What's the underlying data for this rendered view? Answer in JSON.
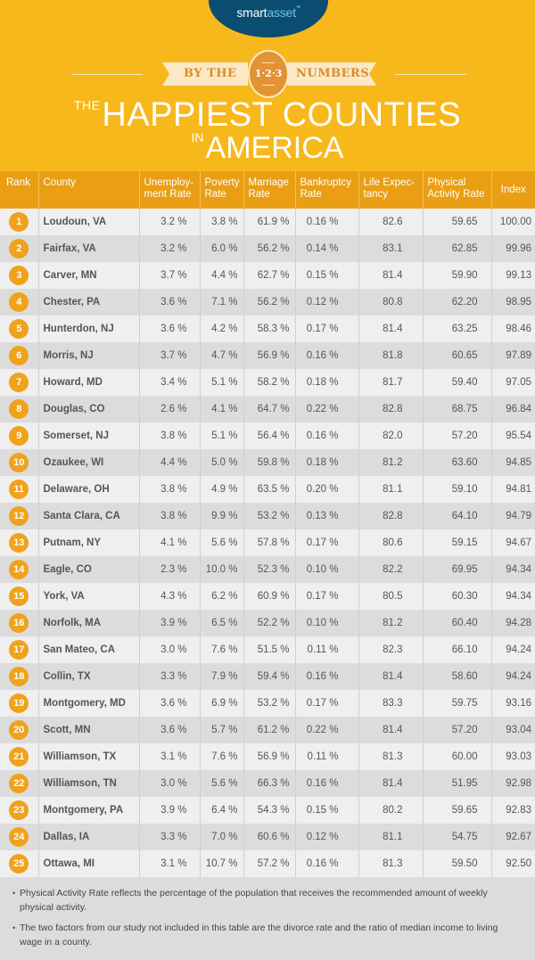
{
  "brand": {
    "logo_part1": "smart",
    "logo_part2": "asset",
    "logo_tm": "™"
  },
  "banner": {
    "left_text": "BY THE",
    "medal_text": "1·2·3",
    "right_text": "NUMBERS"
  },
  "title": {
    "prefix1": "THE",
    "main1": "HAPPIEST COUNTIES",
    "prefix2": "IN",
    "main2": "AMERICA"
  },
  "colors": {
    "background": "#f7b81c",
    "header": "#e99e13",
    "badge": "#f0a21b",
    "logo_oval": "#0a4d70",
    "logo_accent": "#6fc2ea",
    "row_light": "#efefef",
    "row_dark": "#dcdcdc"
  },
  "table": {
    "headers": [
      "Rank",
      "County",
      "Unemploy-ment Rate",
      "Poverty Rate",
      "Marriage Rate",
      "Bankruptcy Rate",
      "Life Expec-tancy",
      "Physical Activity Rate",
      "Index"
    ],
    "rows": [
      [
        "1",
        "Loudoun, VA",
        "3.2 %",
        "3.8 %",
        "61.9 %",
        "0.16 %",
        "82.6",
        "59.65",
        "100.00"
      ],
      [
        "2",
        "Fairfax, VA",
        "3.2 %",
        "6.0 %",
        "56.2 %",
        "0.14 %",
        "83.1",
        "62.85",
        "99.96"
      ],
      [
        "3",
        "Carver, MN",
        "3.7 %",
        "4.4 %",
        "62.7 %",
        "0.15 %",
        "81.4",
        "59.90",
        "99.13"
      ],
      [
        "4",
        "Chester, PA",
        "3.6 %",
        "7.1 %",
        "56.2 %",
        "0.12 %",
        "80.8",
        "62.20",
        "98.95"
      ],
      [
        "5",
        "Hunterdon, NJ",
        "3.6 %",
        "4.2 %",
        "58.3 %",
        "0.17 %",
        "81.4",
        "63.25",
        "98.46"
      ],
      [
        "6",
        "Morris, NJ",
        "3.7 %",
        "4.7 %",
        "56.9 %",
        "0.16 %",
        "81.8",
        "60.65",
        "97.89"
      ],
      [
        "7",
        "Howard, MD",
        "3.4 %",
        "5.1 %",
        "58.2 %",
        "0.18 %",
        "81.7",
        "59.40",
        "97.05"
      ],
      [
        "8",
        "Douglas, CO",
        "2.6 %",
        "4.1 %",
        "64.7 %",
        "0.22 %",
        "82.8",
        "68.75",
        "96.84"
      ],
      [
        "9",
        "Somerset, NJ",
        "3.8 %",
        "5.1 %",
        "56.4 %",
        "0.16 %",
        "82.0",
        "57.20",
        "95.54"
      ],
      [
        "10",
        "Ozaukee, WI",
        "4.4 %",
        "5.0 %",
        "59.8 %",
        "0.18 %",
        "81.2",
        "63.60",
        "94.85"
      ],
      [
        "11",
        "Delaware, OH",
        "3.8 %",
        "4.9 %",
        "63.5 %",
        "0.20 %",
        "81.1",
        "59.10",
        "94.81"
      ],
      [
        "12",
        "Santa Clara, CA",
        "3.8 %",
        "9.9 %",
        "53.2 %",
        "0.13 %",
        "82.8",
        "64.10",
        "94.79"
      ],
      [
        "13",
        "Putnam, NY",
        "4.1 %",
        "5.6 %",
        "57.8 %",
        "0.17 %",
        "80.6",
        "59.15",
        "94.67"
      ],
      [
        "14",
        "Eagle, CO",
        "2.3 %",
        "10.0 %",
        "52.3 %",
        "0.10 %",
        "82.2",
        "69.95",
        "94.34"
      ],
      [
        "15",
        "York, VA",
        "4.3 %",
        "6.2 %",
        "60.9 %",
        "0.17 %",
        "80.5",
        "60.30",
        "94.34"
      ],
      [
        "16",
        "Norfolk, MA",
        "3.9 %",
        "6.5 %",
        "52.2 %",
        "0.10 %",
        "81.2",
        "60.40",
        "94.28"
      ],
      [
        "17",
        "San Mateo, CA",
        "3.0 %",
        "7.6 %",
        "51.5 %",
        "0.11 %",
        "82.3",
        "66.10",
        "94.24"
      ],
      [
        "18",
        "Collin, TX",
        "3.3 %",
        "7.9 %",
        "59.4 %",
        "0.16 %",
        "81.4",
        "58.60",
        "94.24"
      ],
      [
        "19",
        "Montgomery, MD",
        "3.6 %",
        "6.9 %",
        "53.2 %",
        "0.17 %",
        "83.3",
        "59.75",
        "93.16"
      ],
      [
        "20",
        "Scott, MN",
        "3.6 %",
        "5.7 %",
        "61.2 %",
        "0.22 %",
        "81.4",
        "57.20",
        "93.04"
      ],
      [
        "21",
        "Williamson, TX",
        "3.1 %",
        "7.6 %",
        "56.9 %",
        "0.11 %",
        "81.3",
        "60.00",
        "93.03"
      ],
      [
        "22",
        "Williamson, TN",
        "3.0 %",
        "5.6 %",
        "66.3 %",
        "0.16 %",
        "81.4",
        "51.95",
        "92.98"
      ],
      [
        "23",
        "Montgomery, PA",
        "3.9 %",
        "6.4 %",
        "54.3 %",
        "0.15 %",
        "80.2",
        "59.65",
        "92.83"
      ],
      [
        "24",
        "Dallas, IA",
        "3.3 %",
        "7.0 %",
        "60.6 %",
        "0.12 %",
        "81.1",
        "54.75",
        "92.67"
      ],
      [
        "25",
        "Ottawa, MI",
        "3.1 %",
        "10.7 %",
        "57.2 %",
        "0.16 %",
        "81.3",
        "59.50",
        "92.50"
      ]
    ]
  },
  "footnotes": [
    "Physical Activity Rate reflects the percentage of the population that receives the recommended amount of weekly physical activity.",
    "The two factors from our study not included in this table are the divorce rate and the ratio of median income to living wage in a county."
  ],
  "chart_data": {
    "type": "table",
    "title": "The Happiest Counties in America",
    "subtitle": "By the 1·2·3 Numbers",
    "columns": [
      "Rank",
      "County",
      "Unemployment Rate",
      "Poverty Rate",
      "Marriage Rate",
      "Bankruptcy Rate",
      "Life Expectancy",
      "Physical Activity Rate",
      "Index"
    ],
    "categories": [
      "Loudoun, VA",
      "Fairfax, VA",
      "Carver, MN",
      "Chester, PA",
      "Hunterdon, NJ",
      "Morris, NJ",
      "Howard, MD",
      "Douglas, CO",
      "Somerset, NJ",
      "Ozaukee, WI",
      "Delaware, OH",
      "Santa Clara, CA",
      "Putnam, NY",
      "Eagle, CO",
      "York, VA",
      "Norfolk, MA",
      "San Mateo, CA",
      "Collin, TX",
      "Montgomery, MD",
      "Scott, MN",
      "Williamson, TX",
      "Williamson, TN",
      "Montgomery, PA",
      "Dallas, IA",
      "Ottawa, MI"
    ],
    "series": [
      {
        "name": "Unemployment Rate (%)",
        "values": [
          3.2,
          3.2,
          3.7,
          3.6,
          3.6,
          3.7,
          3.4,
          2.6,
          3.8,
          4.4,
          3.8,
          3.8,
          4.1,
          2.3,
          4.3,
          3.9,
          3.0,
          3.3,
          3.6,
          3.6,
          3.1,
          3.0,
          3.9,
          3.3,
          3.1
        ]
      },
      {
        "name": "Poverty Rate (%)",
        "values": [
          3.8,
          6.0,
          4.4,
          7.1,
          4.2,
          4.7,
          5.1,
          4.1,
          5.1,
          5.0,
          4.9,
          9.9,
          5.6,
          10.0,
          6.2,
          6.5,
          7.6,
          7.9,
          6.9,
          5.7,
          7.6,
          5.6,
          6.4,
          7.0,
          10.7
        ]
      },
      {
        "name": "Marriage Rate (%)",
        "values": [
          61.9,
          56.2,
          62.7,
          56.2,
          58.3,
          56.9,
          58.2,
          64.7,
          56.4,
          59.8,
          63.5,
          53.2,
          57.8,
          52.3,
          60.9,
          52.2,
          51.5,
          59.4,
          53.2,
          61.2,
          56.9,
          66.3,
          54.3,
          60.6,
          57.2
        ]
      },
      {
        "name": "Bankruptcy Rate (%)",
        "values": [
          0.16,
          0.14,
          0.15,
          0.12,
          0.17,
          0.16,
          0.18,
          0.22,
          0.16,
          0.18,
          0.2,
          0.13,
          0.17,
          0.1,
          0.17,
          0.1,
          0.11,
          0.16,
          0.17,
          0.22,
          0.11,
          0.16,
          0.15,
          0.12,
          0.16
        ]
      },
      {
        "name": "Life Expectancy",
        "values": [
          82.6,
          83.1,
          81.4,
          80.8,
          81.4,
          81.8,
          81.7,
          82.8,
          82.0,
          81.2,
          81.1,
          82.8,
          80.6,
          82.2,
          80.5,
          81.2,
          82.3,
          81.4,
          83.3,
          81.4,
          81.3,
          81.4,
          80.2,
          81.1,
          81.3
        ]
      },
      {
        "name": "Physical Activity Rate",
        "values": [
          59.65,
          62.85,
          59.9,
          62.2,
          63.25,
          60.65,
          59.4,
          68.75,
          57.2,
          63.6,
          59.1,
          64.1,
          59.15,
          69.95,
          60.3,
          60.4,
          66.1,
          58.6,
          59.75,
          57.2,
          60.0,
          51.95,
          59.65,
          54.75,
          59.5
        ]
      },
      {
        "name": "Index",
        "values": [
          100.0,
          99.96,
          99.13,
          98.95,
          98.46,
          97.89,
          97.05,
          96.84,
          95.54,
          94.85,
          94.81,
          94.79,
          94.67,
          94.34,
          94.34,
          94.28,
          94.24,
          94.24,
          93.16,
          93.04,
          93.03,
          92.98,
          92.83,
          92.67,
          92.5
        ]
      }
    ]
  }
}
